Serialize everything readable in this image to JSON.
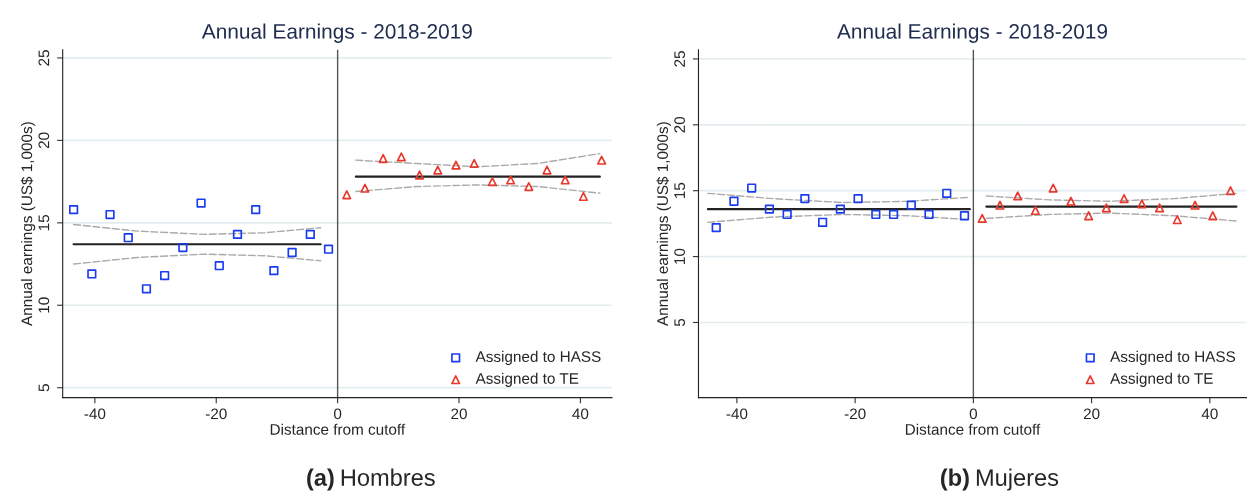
{
  "chart_data": [
    {
      "type": "scatter",
      "title": "Annual Earnings - 2018-2019",
      "xlabel": "Distance from cutoff",
      "ylabel": "Annual earnings (US$ 1,000s)",
      "xlim": [
        -45.3,
        45.2
      ],
      "ylim": [
        4.4,
        25.5
      ],
      "xticks": [
        -40,
        -20,
        0,
        20,
        40
      ],
      "yticks": [
        5,
        10,
        15,
        20,
        25
      ],
      "grid": "y",
      "legend": "bottom right",
      "ref_lines": [
        {
          "axis": "x",
          "value": 0,
          "color": "#555555"
        }
      ],
      "annotations": [
        "(a) Hombres"
      ],
      "series": [
        {
          "name": "Assigned to HASS",
          "color": "#1a3cf0",
          "marker": "square",
          "x": [
            -43.5,
            -40.5,
            -37.5,
            -34.5,
            -31.5,
            -28.5,
            -25.5,
            -22.5,
            -19.5,
            -16.5,
            -13.5,
            -10.5,
            -7.5,
            -4.5,
            -1.5
          ],
          "values": [
            15.8,
            11.9,
            15.5,
            14.1,
            11.0,
            11.8,
            13.5,
            16.2,
            12.4,
            14.3,
            15.8,
            12.1,
            13.2,
            14.3,
            13.4
          ]
        },
        {
          "name": "Assigned to TE",
          "color": "#e8392c",
          "marker": "triangle",
          "x": [
            1.5,
            4.5,
            7.5,
            10.5,
            13.5,
            16.5,
            19.5,
            22.5,
            25.5,
            28.5,
            31.5,
            34.5,
            37.5,
            40.5,
            43.5
          ],
          "values": [
            16.7,
            17.1,
            18.9,
            19.0,
            17.9,
            18.2,
            18.5,
            18.6,
            17.5,
            17.6,
            17.2,
            18.2,
            17.6,
            16.6,
            18.8
          ]
        },
        {
          "type": "line",
          "color": "#222222",
          "line_style": "solid",
          "marker": "none",
          "x": [
            -43.5,
            -2.8
          ],
          "values": [
            13.7,
            13.7
          ]
        },
        {
          "type": "line",
          "color": "#222222",
          "line_style": "solid",
          "marker": "none",
          "x": [
            3.0,
            43.2
          ],
          "values": [
            17.8,
            17.8
          ]
        },
        {
          "type": "line",
          "color": "#aaaaaa",
          "line_style": "dashed",
          "marker": "none",
          "x": [
            -43.5,
            -33,
            -22,
            -12,
            -2.8
          ],
          "values": [
            14.9,
            14.5,
            14.3,
            14.4,
            14.7
          ]
        },
        {
          "type": "line",
          "color": "#aaaaaa",
          "line_style": "dashed",
          "marker": "none",
          "x": [
            -43.5,
            -33,
            -22,
            -12,
            -2.8
          ],
          "values": [
            12.5,
            12.9,
            13.1,
            13.0,
            12.7
          ]
        },
        {
          "type": "line",
          "color": "#aaaaaa",
          "line_style": "dashed",
          "marker": "none",
          "x": [
            3.0,
            13,
            23,
            33,
            43.2
          ],
          "values": [
            18.8,
            18.6,
            18.4,
            18.6,
            19.2
          ]
        },
        {
          "type": "line",
          "color": "#aaaaaa",
          "line_style": "dashed",
          "marker": "none",
          "x": [
            3.0,
            13,
            23,
            33,
            43.2
          ],
          "values": [
            16.9,
            17.2,
            17.3,
            17.2,
            16.8
          ]
        }
      ]
    },
    {
      "type": "scatter",
      "title": "Annual Earnings - 2018-2019",
      "xlabel": "Distance from cutoff",
      "ylabel": "Annual earnings (US$ 1,000s)",
      "xlim": [
        -46.5,
        46.2
      ],
      "ylim": [
        -0.7,
        25.7
      ],
      "xticks": [
        -40,
        -20,
        0,
        20,
        40
      ],
      "yticks": [
        5,
        10,
        15,
        20,
        25
      ],
      "grid": "y",
      "legend": "bottom right",
      "ref_lines": [
        {
          "axis": "x",
          "value": 0,
          "color": "#555555"
        }
      ],
      "annotations": [
        "(b) Mujeres"
      ],
      "series": [
        {
          "name": "Assigned to HASS",
          "color": "#1a3cf0",
          "marker": "square",
          "x": [
            -43.5,
            -40.5,
            -37.5,
            -34.5,
            -31.5,
            -28.5,
            -25.5,
            -22.5,
            -19.5,
            -16.5,
            -13.5,
            -10.5,
            -7.5,
            -4.5,
            -1.5
          ],
          "values": [
            12.2,
            14.2,
            15.2,
            13.6,
            13.2,
            14.4,
            12.6,
            13.6,
            14.4,
            13.2,
            13.2,
            13.9,
            13.2,
            14.8,
            13.1
          ]
        },
        {
          "name": "Assigned to TE",
          "color": "#e8392c",
          "marker": "triangle",
          "x": [
            1.5,
            4.5,
            7.5,
            10.5,
            13.5,
            16.5,
            19.5,
            22.5,
            25.5,
            28.5,
            31.5,
            34.5,
            37.5,
            40.5,
            43.5
          ],
          "values": [
            12.9,
            13.9,
            14.6,
            13.5,
            15.2,
            14.2,
            13.1,
            13.7,
            14.4,
            14.0,
            13.7,
            12.8,
            13.9,
            13.1,
            15.0
          ]
        },
        {
          "type": "line",
          "color": "#222222",
          "line_style": "solid",
          "marker": "none",
          "x": [
            -44.9,
            -0.6
          ],
          "values": [
            13.6,
            13.6
          ]
        },
        {
          "type": "line",
          "color": "#222222",
          "line_style": "solid",
          "marker": "none",
          "x": [
            2.2,
            44.5
          ],
          "values": [
            13.8,
            13.8
          ]
        },
        {
          "type": "line",
          "color": "#aaaaaa",
          "line_style": "dashed",
          "marker": "none",
          "x": [
            -44.9,
            -34,
            -22,
            -11,
            -0.6
          ],
          "values": [
            14.8,
            14.4,
            14.1,
            14.2,
            14.5
          ]
        },
        {
          "type": "line",
          "color": "#aaaaaa",
          "line_style": "dashed",
          "marker": "none",
          "x": [
            -44.9,
            -34,
            -22,
            -11,
            -0.6
          ],
          "values": [
            12.6,
            13.0,
            13.2,
            13.1,
            12.8
          ]
        },
        {
          "type": "line",
          "color": "#aaaaaa",
          "line_style": "dashed",
          "marker": "none",
          "x": [
            2.2,
            13,
            23,
            34,
            44.5
          ],
          "values": [
            14.6,
            14.3,
            14.2,
            14.4,
            14.8
          ]
        },
        {
          "type": "line",
          "color": "#aaaaaa",
          "line_style": "dashed",
          "marker": "none",
          "x": [
            2.2,
            13,
            23,
            34,
            44.5
          ],
          "values": [
            12.9,
            13.2,
            13.3,
            13.1,
            12.7
          ]
        }
      ]
    }
  ]
}
